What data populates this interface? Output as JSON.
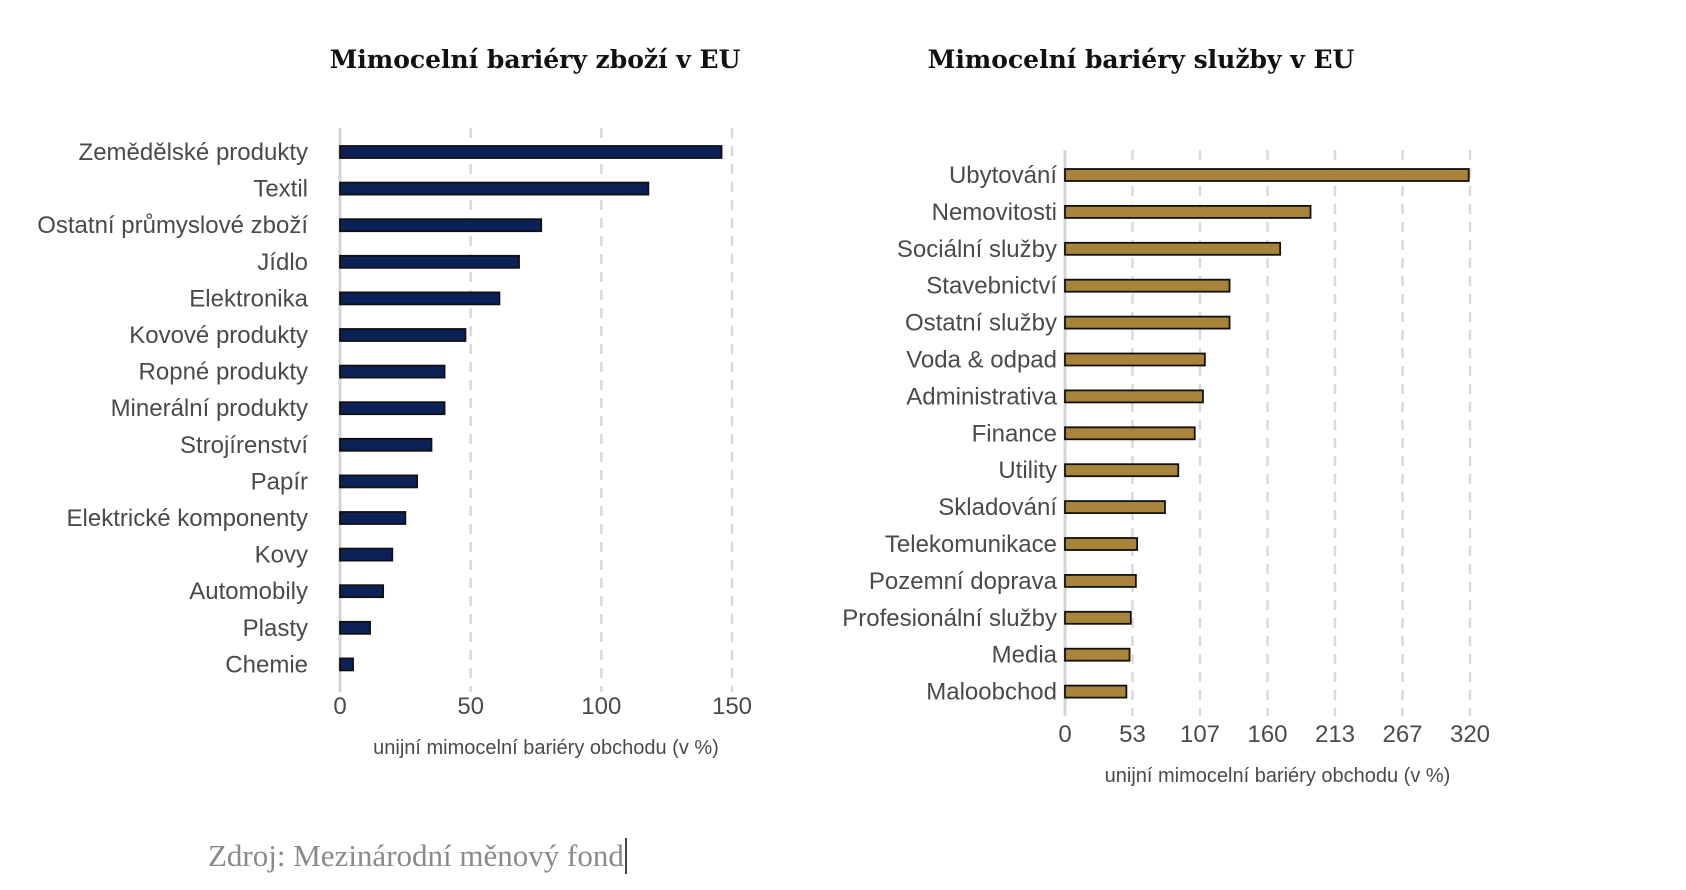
{
  "chart_data": [
    {
      "type": "bar",
      "orientation": "horizontal",
      "title": "Mimocelní bariéry zboží v EU",
      "xlabel": "unijní mimocelní bariéry obchodu (v %)",
      "ylabel": "",
      "xlim": [
        0,
        150
      ],
      "xticks": [
        "0",
        "50",
        "100",
        "150"
      ],
      "xtick_values": [
        0,
        50,
        100,
        150
      ],
      "grid": true,
      "color": "#0b2157",
      "categories": [
        "Zemědělské produkty",
        "Textil",
        "Ostatní průmyslové zboží",
        "Jídlo",
        "Elektronika",
        "Kovové produkty",
        "Ropné produkty",
        "Minerální produkty",
        "Strojírenství",
        "Papír",
        "Elektrické komponenty",
        "Kovy",
        "Automobily",
        "Plasty",
        "Chemie"
      ],
      "values": [
        146,
        118,
        77,
        68.5,
        61,
        48,
        40,
        40,
        35,
        29.5,
        25,
        20,
        16.5,
        11.5,
        5
      ]
    },
    {
      "type": "bar",
      "orientation": "horizontal",
      "title": "Mimocelní bariéry služby v EU",
      "xlabel": "unijní mimocelní bariéry obchodu (v %)",
      "ylabel": "",
      "xlim": [
        0,
        320
      ],
      "xticks": [
        "0",
        "53",
        "107",
        "160",
        "213",
        "267",
        "320"
      ],
      "xtick_values": [
        0,
        53.33,
        106.67,
        160,
        213.33,
        266.67,
        320
      ],
      "grid": true,
      "color": "#a8843a",
      "categories": [
        "Ubytování",
        "Nemovitosti",
        "Sociální služby",
        "Stavebnictví",
        "Ostatní služby",
        "Voda & odpad",
        "Administrativa",
        "Finance",
        "Utility",
        "Skladování",
        "Telekomunikace",
        "Pozemní doprava",
        "Profesionální služby",
        "Media",
        "Maloobchod"
      ],
      "values": [
        319,
        194,
        170,
        130,
        130,
        110.5,
        109,
        102.5,
        89.5,
        79,
        57,
        56,
        52,
        51,
        48.5
      ]
    }
  ],
  "source": "Zdroj: Mezinárodní měnový fond"
}
